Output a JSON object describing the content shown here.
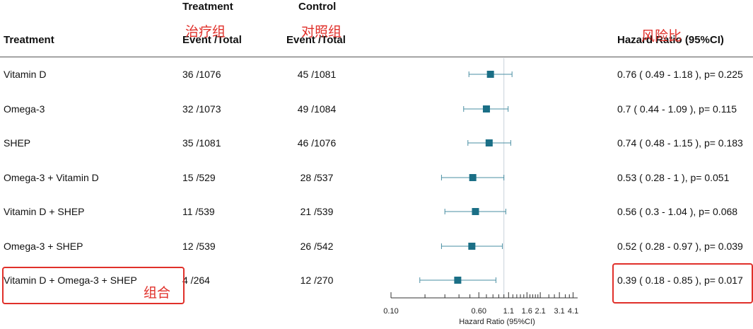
{
  "header": {
    "col_treatment": "Treatment",
    "group_treatment": "Treatment",
    "group_control": "Control",
    "event_total_treatment": "Event /Total",
    "event_total_control": "Event /Total",
    "hr_label": "Hazard Ratio (95%CI)"
  },
  "annotations": {
    "treatment_cn": "治疗组",
    "control_cn": "对照组",
    "hr_cn": "风险比",
    "combo_cn": "组合"
  },
  "rows": [
    {
      "treatment": "Vitamin D",
      "treat_et": "36 /1076",
      "control_et": "45 /1081",
      "hr_text": "0.76  ( 0.49 - 1.18 ), p= 0.225"
    },
    {
      "treatment": "Omega-3",
      "treat_et": "32 /1073",
      "control_et": "49 /1084",
      "hr_text": "0.7  ( 0.44 - 1.09 ), p= 0.115"
    },
    {
      "treatment": "SHEP",
      "treat_et": "35 /1081",
      "control_et": "46 /1076",
      "hr_text": "0.74  ( 0.48 - 1.15 ), p= 0.183"
    },
    {
      "treatment": "Omega-3 + Vitamin D",
      "treat_et": "15 /529",
      "control_et": "28 /537",
      "hr_text": "0.53  ( 0.28 - 1 ), p= 0.051"
    },
    {
      "treatment": "Vitamin D + SHEP",
      "treat_et": "11 /539",
      "control_et": "21 /539",
      "hr_text": "0.56  ( 0.3 - 1.04 ), p= 0.068"
    },
    {
      "treatment": "Omega-3 + SHEP",
      "treat_et": "12 /539",
      "control_et": "26 /542",
      "hr_text": "0.52  ( 0.28 - 0.97 ), p= 0.039"
    },
    {
      "treatment": "Vitamin D + Omega-3 + SHEP",
      "treat_et": "4 /264",
      "control_et": "12 /270",
      "hr_text": "0.39  ( 0.18 - 0.85 ), p= 0.017"
    }
  ],
  "chart_data": {
    "type": "scatter",
    "categories": [
      "Vitamin D",
      "Omega-3",
      "SHEP",
      "Omega-3 + Vitamin D",
      "Vitamin D + SHEP",
      "Omega-3 + SHEP",
      "Vitamin D + Omega-3 + SHEP"
    ],
    "hr": [
      0.76,
      0.7,
      0.74,
      0.53,
      0.56,
      0.52,
      0.39
    ],
    "lower": [
      0.49,
      0.44,
      0.48,
      0.28,
      0.3,
      0.28,
      0.18
    ],
    "upper": [
      1.18,
      1.09,
      1.15,
      1,
      1.04,
      0.97,
      0.85
    ],
    "reference_line": 1,
    "x_scale": "log",
    "xlim": [
      0.1,
      4.5
    ],
    "xticks": [
      0.1,
      0.6,
      1.1,
      1.6,
      2.1,
      3.1,
      4.1
    ],
    "xtick_labels": [
      "0.10",
      "0.60",
      "1.1",
      "1.6",
      "2.1",
      "3.1",
      "4.1"
    ],
    "minor_ticks": [
      0.2,
      0.3,
      0.4,
      0.5,
      0.7,
      0.8,
      0.9,
      1.0,
      1.2,
      1.3,
      1.4,
      1.5,
      1.7,
      1.8,
      1.9,
      2.0,
      2.5,
      2.8,
      3.5,
      3.8
    ],
    "xlabel": "Hazard Ratio (95%CI)",
    "marker_color": "#1b6f86",
    "whisker_color": "#4a8fa3",
    "reference_color": "#c9d3dc"
  }
}
